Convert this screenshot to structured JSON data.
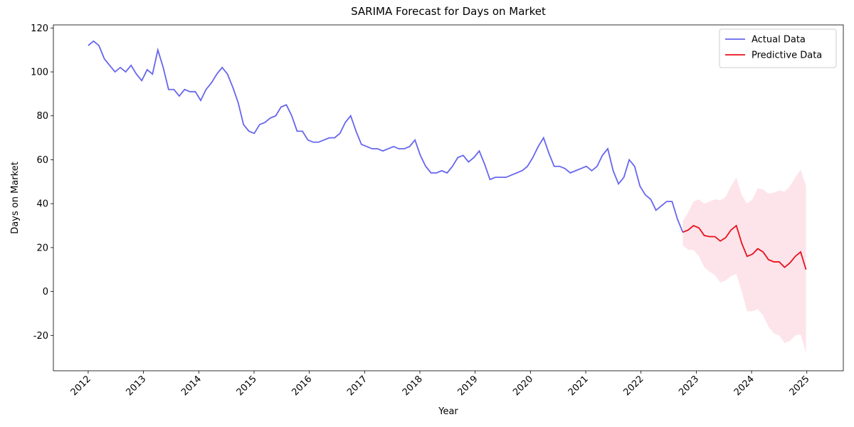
{
  "chart_data": {
    "type": "line",
    "title": "SARIMA Forecast for Days on Market",
    "xlabel": "Year",
    "ylabel": "Days on Market",
    "xlim": [
      2011.37,
      2025.66
    ],
    "ylim": [
      -36.1,
      121.4
    ],
    "xticks": [
      2012,
      2013,
      2014,
      2015,
      2016,
      2017,
      2018,
      2019,
      2020,
      2021,
      2022,
      2023,
      2024,
      2025
    ],
    "yticks": [
      -20,
      0,
      20,
      40,
      60,
      80,
      100,
      120
    ],
    "legend": "upper right",
    "series": [
      {
        "name": "Actual Data",
        "color": "#6666ee",
        "x": [
          2012,
          2012.097,
          2012.194,
          2012.291,
          2012.388,
          2012.485,
          2012.581,
          2012.678,
          2012.775,
          2012.872,
          2012.969,
          2013.066,
          2013.163,
          2013.26,
          2013.357,
          2013.454,
          2013.55,
          2013.647,
          2013.744,
          2013.841,
          2013.938,
          2014.035,
          2014.132,
          2014.229,
          2014.326,
          2014.423,
          2014.519,
          2014.616,
          2014.713,
          2014.81,
          2014.907,
          2015.004,
          2015.101,
          2015.198,
          2015.295,
          2015.392,
          2015.488,
          2015.585,
          2015.682,
          2015.779,
          2015.876,
          2015.973,
          2016.07,
          2016.167,
          2016.264,
          2016.361,
          2016.457,
          2016.554,
          2016.651,
          2016.748,
          2016.845,
          2016.942,
          2017.039,
          2017.136,
          2017.233,
          2017.33,
          2017.426,
          2017.523,
          2017.62,
          2017.717,
          2017.814,
          2017.911,
          2018.008,
          2018.105,
          2018.202,
          2018.299,
          2018.395,
          2018.492,
          2018.589,
          2018.686,
          2018.783,
          2018.88,
          2018.977,
          2019.074,
          2019.171,
          2019.268,
          2019.364,
          2019.461,
          2019.558,
          2019.655,
          2019.752,
          2019.849,
          2019.946,
          2020.043,
          2020.14,
          2020.237,
          2020.333,
          2020.43,
          2020.527,
          2020.624,
          2020.721,
          2020.818,
          2020.915,
          2021.012,
          2021.109,
          2021.206,
          2021.302,
          2021.399,
          2021.496,
          2021.593,
          2021.69,
          2021.787,
          2021.884,
          2021.981,
          2022.078,
          2022.175,
          2022.271,
          2022.368,
          2022.465,
          2022.562,
          2022.659,
          2022.756
        ],
        "values": [
          112,
          114,
          112,
          106,
          103,
          100,
          102,
          100,
          103,
          99,
          96,
          101,
          99,
          110,
          102,
          92,
          92,
          89,
          92,
          91,
          91,
          87,
          92,
          95,
          99,
          102,
          99,
          93,
          86,
          76,
          73,
          72,
          76,
          77,
          79,
          80,
          84,
          85,
          80,
          73,
          73,
          69,
          68,
          68,
          69,
          70,
          70,
          72,
          77,
          80,
          73,
          67,
          66,
          65,
          65,
          64,
          65,
          66,
          65,
          65,
          66,
          69,
          62,
          57,
          54,
          54,
          55,
          54,
          57,
          61,
          62,
          59,
          61,
          64,
          58,
          51,
          52,
          52,
          52,
          53,
          54,
          55,
          57,
          61,
          66,
          70,
          63,
          57,
          57,
          56,
          54,
          55,
          56,
          57,
          55,
          57,
          62,
          65,
          55,
          49,
          52,
          60,
          57,
          48,
          44,
          42,
          37,
          39,
          41,
          41,
          33,
          27
        ]
      },
      {
        "name": "Predictive Data",
        "color": "#e8101c",
        "band_color": "#fde4ea",
        "x": [
          2022.756,
          2022.853,
          2022.95,
          2023.047,
          2023.144,
          2023.24,
          2023.337,
          2023.434,
          2023.531,
          2023.628,
          2023.725,
          2023.822,
          2023.919,
          2024.016,
          2024.113,
          2024.209,
          2024.306,
          2024.403,
          2024.5,
          2024.597,
          2024.694,
          2024.791,
          2024.888,
          2024.985
        ],
        "values": [
          27,
          28,
          30,
          29,
          25.5,
          25,
          25,
          23,
          24.5,
          28,
          30,
          22,
          16,
          17,
          19.5,
          18,
          14.5,
          13.5,
          13.5,
          11,
          13,
          16,
          18,
          10
        ],
        "upper": [
          32,
          36,
          41,
          42,
          40,
          41,
          42,
          41.5,
          43,
          48,
          52,
          44,
          40,
          42,
          47,
          46.5,
          44.5,
          45,
          46,
          45.5,
          48,
          52,
          55.5,
          48
        ],
        "lower": [
          21,
          19,
          19,
          16,
          11,
          9,
          7.5,
          4,
          5,
          7,
          8,
          0,
          -9,
          -9,
          -8,
          -11,
          -16,
          -19,
          -20,
          -23.5,
          -22.5,
          -20,
          -19.5,
          -28
        ]
      }
    ]
  }
}
